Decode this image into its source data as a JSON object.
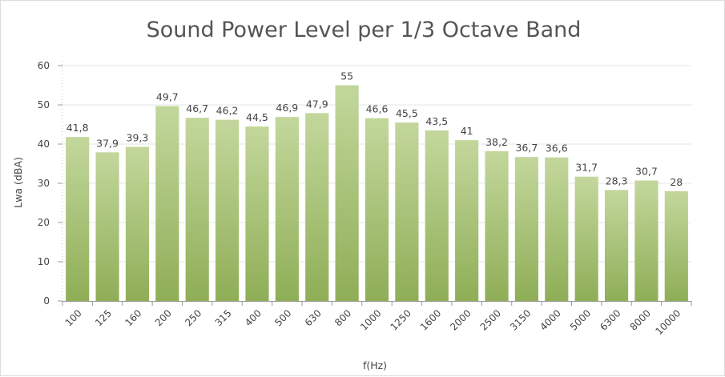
{
  "chart_data": {
    "type": "bar",
    "title": "Sound Power Level per 1/3 Octave Band",
    "xlabel": "f(Hz)",
    "ylabel": "Lwa (dBA)",
    "ylim": [
      0,
      60
    ],
    "yticks": [
      "0",
      "10",
      "20",
      "30",
      "40",
      "50",
      "60"
    ],
    "grid": true,
    "categories": [
      "100",
      "125",
      "160",
      "200",
      "250",
      "315",
      "400",
      "500",
      "630",
      "800",
      "1000",
      "1250",
      "1600",
      "2000",
      "2500",
      "3150",
      "4000",
      "5000",
      "6300",
      "8000",
      "10000"
    ],
    "values": [
      41.8,
      37.9,
      39.3,
      49.7,
      46.7,
      46.2,
      44.5,
      46.9,
      47.9,
      55,
      46.6,
      45.5,
      43.5,
      41,
      38.2,
      36.7,
      36.6,
      31.7,
      28.3,
      30.7,
      28
    ],
    "data_labels": [
      "41,8",
      "37,9",
      "39,3",
      "49,7",
      "46,7",
      "46,2",
      "44,5",
      "46,9",
      "47,9",
      "55",
      "46,6",
      "45,5",
      "43,5",
      "41",
      "38,2",
      "36,7",
      "36,6",
      "31,7",
      "28,3",
      "30,7",
      "28"
    ],
    "colors": {
      "bar_top": "#c3d79c",
      "bar_bottom": "#8fae57",
      "grid": "#e6e6e6",
      "axis": "#999999"
    }
  }
}
